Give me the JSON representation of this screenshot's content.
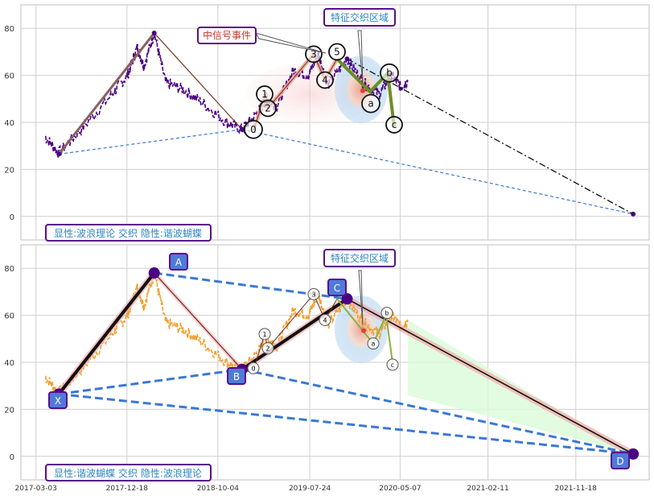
{
  "chart_data": [
    {
      "type": "line",
      "panel": "top",
      "yticks": [
        0,
        20,
        40,
        60,
        80
      ],
      "ylim": [
        -10,
        90
      ],
      "grid": true,
      "bottom_label": "显性:波浪理论 交织 隐性:谐波蝴蝶",
      "callouts": [
        {
          "text": "中信号事件",
          "color": "#c0392b"
        },
        {
          "text": "特征交织区域",
          "color": "#2e86c1"
        }
      ],
      "wave_labels": [
        "0",
        "1",
        "2",
        "3",
        "4",
        "5",
        "a",
        "b",
        "c"
      ],
      "xabcd_points": [
        {
          "label": "X",
          "date": "2017-05-15",
          "y": 26.5
        },
        {
          "label": "A",
          "date": "2018-03-15",
          "y": 78
        },
        {
          "label": "B",
          "date": "2018-12-20",
          "y": 37
        },
        {
          "label": "C",
          "date": "2019-11-20",
          "y": 67
        },
        {
          "label": "D",
          "date": "2022-05-20",
          "y": 1
        }
      ]
    },
    {
      "type": "line",
      "panel": "bottom",
      "yticks": [
        0,
        20,
        40,
        60,
        80
      ],
      "ylim": [
        -10,
        90
      ],
      "xticks": [
        "2017-03-03",
        "2017-12-18",
        "2018-10-04",
        "2019-07-24",
        "2020-05-07",
        "2021-02-11",
        "2021-11-18"
      ],
      "grid": true,
      "bottom_label": "显性:谐波蝴蝶 交织 隐性:波浪理论",
      "callouts": [
        {
          "text": "特征交织区域",
          "color": "#2e86c1"
        }
      ],
      "point_labels": [
        "X",
        "A",
        "B",
        "C",
        "D"
      ],
      "wave_labels": [
        "0",
        "1",
        "2",
        "3",
        "4",
        "a",
        "b",
        "c"
      ]
    }
  ],
  "price_series_anchors": [
    {
      "date": "2017-04-01",
      "y": 34
    },
    {
      "date": "2017-05-15",
      "y": 27
    },
    {
      "date": "2017-08-01",
      "y": 38
    },
    {
      "date": "2017-11-01",
      "y": 52
    },
    {
      "date": "2017-12-20",
      "y": 60
    },
    {
      "date": "2018-01-20",
      "y": 72
    },
    {
      "date": "2018-02-10",
      "y": 64
    },
    {
      "date": "2018-03-15",
      "y": 78
    },
    {
      "date": "2018-04-20",
      "y": 57
    },
    {
      "date": "2018-06-15",
      "y": 54
    },
    {
      "date": "2018-08-20",
      "y": 48
    },
    {
      "date": "2018-11-01",
      "y": 40
    },
    {
      "date": "2018-12-20",
      "y": 37
    },
    {
      "date": "2019-02-01",
      "y": 43
    },
    {
      "date": "2019-03-10",
      "y": 50
    },
    {
      "date": "2019-04-10",
      "y": 47
    },
    {
      "date": "2019-06-01",
      "y": 62
    },
    {
      "date": "2019-07-20",
      "y": 60
    },
    {
      "date": "2019-08-20",
      "y": 69
    },
    {
      "date": "2019-09-20",
      "y": 56
    },
    {
      "date": "2019-11-20",
      "y": 67
    },
    {
      "date": "2020-01-10",
      "y": 57
    },
    {
      "date": "2020-03-01",
      "y": 52
    },
    {
      "date": "2020-04-10",
      "y": 60
    },
    {
      "date": "2020-05-10",
      "y": 55
    },
    {
      "date": "2020-06-01",
      "y": 58
    }
  ],
  "colors": {
    "price_top": "#4b0082",
    "price_bottom": "#f0a030",
    "grid": "#cfcfcf",
    "label_text": "#2e86c1",
    "box_border": "#5a0e8a",
    "marker_fill": "#4f7ad9"
  }
}
